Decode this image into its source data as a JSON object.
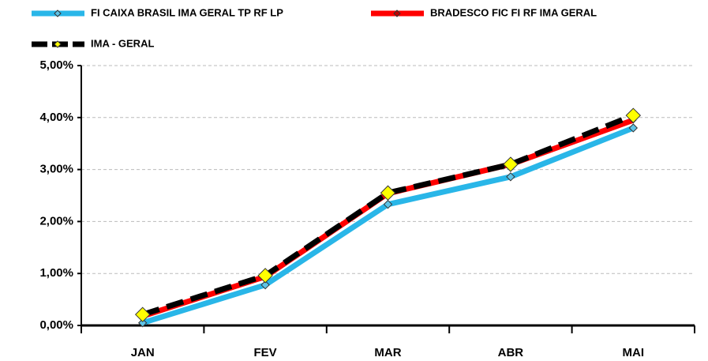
{
  "chart_data": {
    "type": "line",
    "categories": [
      "JAN",
      "FEV",
      "MAR",
      "ABR",
      "MAI"
    ],
    "series": [
      {
        "name": "FI CAIXA BRASIL IMA GERAL TP RF LP",
        "color": "#29b6e8",
        "marker_color": "#5ec4e8",
        "values": [
          0.05,
          0.78,
          2.33,
          2.86,
          3.8
        ]
      },
      {
        "name": "BRADESCO FIC FI RF IMA GERAL",
        "color": "#ff0000",
        "marker_color": "#c00000",
        "values": [
          0.18,
          0.94,
          2.54,
          3.1,
          3.95
        ]
      },
      {
        "name": "IMA - GERAL",
        "color": "#000000",
        "marker_color": "#ffff00",
        "values": [
          0.21,
          0.96,
          2.55,
          3.1,
          4.04
        ]
      }
    ],
    "ylim": [
      0,
      5
    ],
    "yticks": [
      {
        "value": 0,
        "label": "0,00%"
      },
      {
        "value": 1,
        "label": "1,00%"
      },
      {
        "value": 2,
        "label": "2,00%"
      },
      {
        "value": 3,
        "label": "3,00%"
      },
      {
        "value": 4,
        "label": "4,00%"
      },
      {
        "value": 5,
        "label": "5,00%"
      }
    ],
    "grid": true
  }
}
